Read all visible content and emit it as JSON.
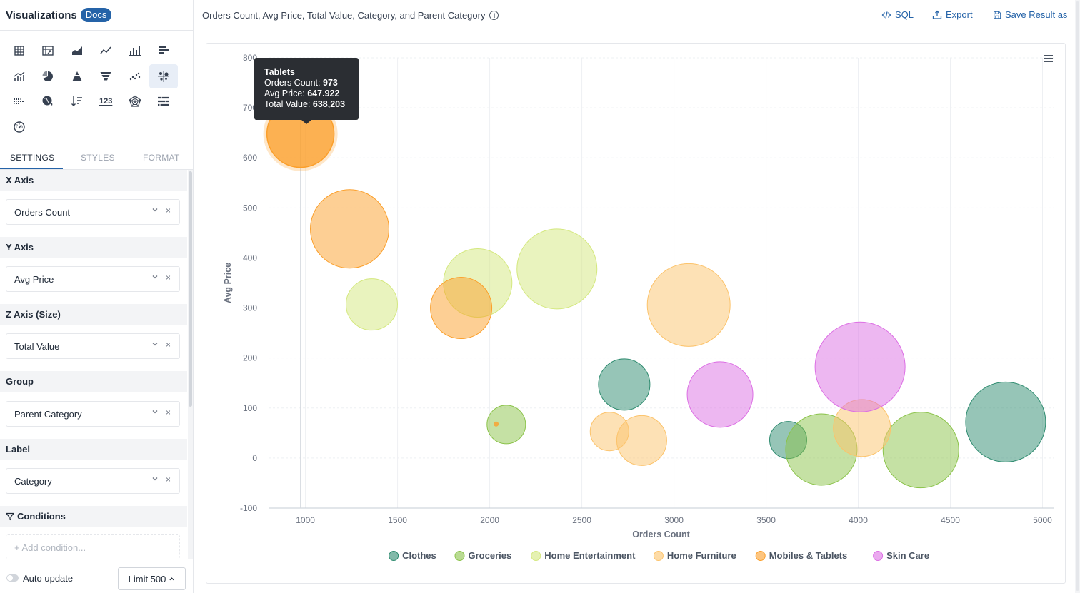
{
  "sidebar": {
    "title": "Visualizations",
    "docs_label": "Docs",
    "viz_types": [
      {
        "icon": "table-icon"
      },
      {
        "icon": "pivot-table-icon"
      },
      {
        "icon": "area-chart-icon"
      },
      {
        "icon": "line-chart-icon"
      },
      {
        "icon": "bar-chart-icon"
      },
      {
        "icon": "horizontal-bar-chart-icon"
      },
      {
        "icon": "combo-chart-icon"
      },
      {
        "icon": "pie-chart-icon"
      },
      {
        "icon": "pyramid-chart-icon"
      },
      {
        "icon": "funnel-chart-icon"
      },
      {
        "icon": "scatter-chart-icon"
      },
      {
        "icon": "bubble-chart-icon",
        "active": true
      },
      {
        "icon": "heatmap-icon"
      },
      {
        "icon": "map-chart-icon"
      },
      {
        "icon": "sort-chart-icon"
      },
      {
        "icon": "number-card-icon",
        "text": "123"
      },
      {
        "icon": "radar-chart-icon"
      },
      {
        "icon": "gantt-chart-icon"
      },
      {
        "icon": "gauge-chart-icon"
      }
    ],
    "tabs": [
      {
        "label": "SETTINGS",
        "active": true
      },
      {
        "label": "STYLES"
      },
      {
        "label": "FORMAT"
      }
    ],
    "sections": {
      "x_axis": {
        "title": "X Axis",
        "value": "Orders Count"
      },
      "y_axis": {
        "title": "Y Axis",
        "value": "Avg Price"
      },
      "z_axis": {
        "title": "Z Axis (Size)",
        "value": "Total Value"
      },
      "group": {
        "title": "Group",
        "value": "Parent Category"
      },
      "label": {
        "title": "Label",
        "value": "Category"
      },
      "conditions": {
        "title": "Conditions",
        "add_placeholder": "+ Add condition..."
      }
    },
    "footer": {
      "auto_update_label": "Auto update",
      "auto_update_on": false,
      "limit_label": "Limit 500"
    }
  },
  "header": {
    "title": "Orders Count, Avg Price, Total Value, Category, and Parent Category",
    "sql_label": "SQL",
    "export_label": "Export",
    "save_label": "Save Result as"
  },
  "tooltip": {
    "title": "Tablets",
    "lines": [
      {
        "label": "Orders Count:",
        "value": "973"
      },
      {
        "label": "Avg Price:",
        "value": "647.922"
      },
      {
        "label": "Total Value:",
        "value": "638,203"
      }
    ]
  },
  "chart_data": {
    "type": "scatter",
    "subtype": "bubble",
    "xlabel": "Orders Count",
    "ylabel": "Avg Price",
    "xlim": [
      800,
      5060
    ],
    "ylim": [
      -100,
      800
    ],
    "xticks": [
      1000,
      1500,
      2000,
      2500,
      3000,
      3500,
      4000,
      4500,
      5000
    ],
    "yticks": [
      -100,
      0,
      100,
      200,
      300,
      400,
      500,
      600,
      700,
      800
    ],
    "legend_position": "bottom",
    "series": [
      {
        "name": "Clothes",
        "color": "#2e8b6f",
        "points": [
          {
            "x": 2730,
            "y": 147,
            "z": 36
          },
          {
            "x": 3620,
            "y": 36,
            "z": 26
          },
          {
            "x": 4800,
            "y": 72,
            "z": 56
          }
        ]
      },
      {
        "name": "Groceries",
        "color": "#8bc34a",
        "points": [
          {
            "x": 2090,
            "y": 67,
            "z": 27
          },
          {
            "x": 3800,
            "y": 17,
            "z": 50
          },
          {
            "x": 4340,
            "y": 16,
            "z": 53
          }
        ]
      },
      {
        "name": "Home Entertainment",
        "color": "#d4e87e",
        "points": [
          {
            "x": 1360,
            "y": 307,
            "z": 36
          },
          {
            "x": 1935,
            "y": 350,
            "z": 48
          },
          {
            "x": 2365,
            "y": 378,
            "z": 56
          }
        ]
      },
      {
        "name": "Home Furniture",
        "color": "#fcc36b",
        "points": [
          {
            "x": 3080,
            "y": 306,
            "z": 58
          },
          {
            "x": 2650,
            "y": 53,
            "z": 27
          },
          {
            "x": 2825,
            "y": 35,
            "z": 35
          },
          {
            "x": 4020,
            "y": 60,
            "z": 40
          }
        ]
      },
      {
        "name": "Mobiles & Tablets",
        "color": "#fb9f2a",
        "points": [
          {
            "x": 973,
            "y": 647.922,
            "z": 47,
            "highlight": true
          },
          {
            "x": 1240,
            "y": 458,
            "z": 55
          },
          {
            "x": 1845,
            "y": 300,
            "z": 43
          }
        ]
      },
      {
        "name": "Skin Care",
        "color": "#dc6fe4",
        "points": [
          {
            "x": 3250,
            "y": 127,
            "z": 46
          },
          {
            "x": 4010,
            "y": 182,
            "z": 63
          }
        ]
      }
    ],
    "extra_points": [
      {
        "x": 2035,
        "y": 68,
        "color": "#fb9f2a",
        "tiny": true
      }
    ]
  }
}
